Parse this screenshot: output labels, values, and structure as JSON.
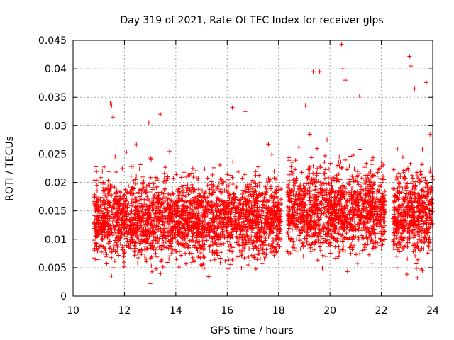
{
  "chart_data": {
    "type": "scatter",
    "title": "Day 319 of 2021, Rate Of TEC Index for receiver glps",
    "xlabel": "GPS time / hours",
    "ylabel": "ROTI / TECUs",
    "xlim": [
      10,
      24
    ],
    "ylim": [
      0,
      0.045
    ],
    "xticks": [
      10,
      12,
      14,
      16,
      18,
      20,
      22,
      24
    ],
    "yticks": [
      0,
      0.005,
      0.01,
      0.015,
      0.02,
      0.025,
      0.03,
      0.035,
      0.04,
      0.045
    ],
    "ytick_labels": [
      "0",
      "0.005",
      "0.01",
      "0.015",
      "0.02",
      "0.025",
      "0.03",
      "0.035",
      "0.04",
      "0.045"
    ],
    "grid": true,
    "marker": "+",
    "series_color": "#ff0000",
    "series": [
      {
        "name": "ROTI",
        "segments": [
          {
            "x_start": 10.8,
            "x_end": 18.1,
            "typical_range": [
              0.005,
              0.022
            ]
          },
          {
            "x_start": 18.35,
            "x_end": 22.15,
            "typical_range": [
              0.006,
              0.024
            ]
          },
          {
            "x_start": 22.45,
            "x_end": 24.0,
            "typical_range": [
              0.005,
              0.024
            ]
          }
        ],
        "notable_points": [
          {
            "x": 11.45,
            "y": 0.034
          },
          {
            "x": 11.5,
            "y": 0.0335
          },
          {
            "x": 11.55,
            "y": 0.0315
          },
          {
            "x": 13.4,
            "y": 0.032
          },
          {
            "x": 12.95,
            "y": 0.0305
          },
          {
            "x": 13.0,
            "y": 0.0022
          },
          {
            "x": 16.2,
            "y": 0.0332
          },
          {
            "x": 16.7,
            "y": 0.0325
          },
          {
            "x": 19.05,
            "y": 0.0335
          },
          {
            "x": 19.35,
            "y": 0.0395
          },
          {
            "x": 19.6,
            "y": 0.0395
          },
          {
            "x": 20.45,
            "y": 0.0443
          },
          {
            "x": 20.5,
            "y": 0.04
          },
          {
            "x": 20.6,
            "y": 0.038
          },
          {
            "x": 21.15,
            "y": 0.0352
          },
          {
            "x": 23.1,
            "y": 0.0422
          },
          {
            "x": 23.15,
            "y": 0.0405
          },
          {
            "x": 23.75,
            "y": 0.0376
          },
          {
            "x": 23.3,
            "y": 0.0365
          },
          {
            "x": 11.5,
            "y": 0.0035
          },
          {
            "x": 23.6,
            "y": 0.0045
          }
        ]
      }
    ]
  }
}
